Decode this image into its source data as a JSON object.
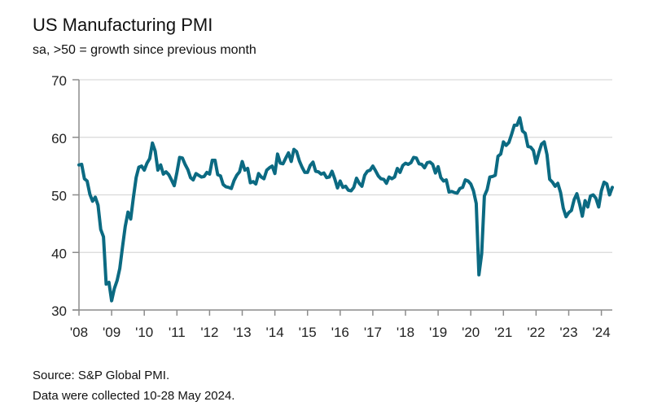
{
  "chart_data": {
    "type": "line",
    "title": "US Manufacturing PMI",
    "subtitle": "sa, >50 = growth since previous month",
    "xlabel": "",
    "ylabel": "",
    "ylim": [
      30,
      70
    ],
    "yticks": [
      30,
      40,
      50,
      60,
      70
    ],
    "xlim": [
      "2008-01",
      "2024-05"
    ],
    "xtick_labels": [
      "'08",
      "'09",
      "'10",
      "'11",
      "'12",
      "'13",
      "'14",
      "'15",
      "'16",
      "'17",
      "'18",
      "'19",
      "'20",
      "'21",
      "'22",
      "'23",
      "'24"
    ],
    "grid": "horizontal",
    "legend": "none",
    "line_color": "#0b6a82",
    "series": [
      {
        "name": "US Manufacturing PMI",
        "start": "2008-01",
        "frequency": "monthly",
        "values": [
          55.2,
          55.3,
          52.8,
          52.4,
          50.1,
          48.9,
          49.6,
          48.2,
          44.0,
          42.7,
          34.5,
          34.8,
          31.6,
          33.7,
          35.1,
          37.2,
          41.0,
          44.5,
          47.0,
          45.8,
          49.5,
          53.0,
          54.8,
          55.0,
          54.3,
          55.5,
          56.3,
          59.0,
          57.6,
          54.3,
          55.2,
          53.6,
          54.0,
          53.5,
          52.6,
          51.6,
          53.9,
          56.5,
          56.4,
          55.3,
          54.4,
          53.0,
          52.6,
          53.7,
          53.4,
          53.1,
          53.2,
          53.9,
          53.6,
          56.0,
          56.0,
          53.5,
          53.3,
          51.8,
          51.4,
          51.3,
          51.1,
          52.5,
          53.4,
          54.0,
          55.8,
          54.3,
          54.6,
          52.1,
          52.3,
          51.9,
          53.7,
          53.1,
          52.8,
          54.3,
          54.7,
          55.0,
          53.7,
          57.1,
          55.5,
          55.4,
          56.4,
          57.3,
          55.8,
          57.9,
          57.5,
          55.9,
          54.8,
          53.9,
          53.9,
          55.1,
          55.7,
          54.1,
          54.0,
          53.6,
          53.8,
          53.0,
          53.1,
          54.1,
          52.8,
          51.2,
          52.4,
          51.3,
          51.5,
          50.8,
          50.7,
          51.3,
          52.9,
          52.0,
          51.5,
          53.4,
          54.1,
          54.3,
          55.0,
          54.2,
          53.3,
          52.8,
          52.7,
          52.0,
          53.1,
          52.8,
          53.1,
          54.6,
          53.9,
          55.1,
          55.5,
          55.3,
          55.6,
          56.5,
          56.4,
          55.4,
          55.3,
          54.7,
          55.6,
          55.7,
          55.3,
          53.8,
          54.9,
          53.0,
          52.4,
          52.6,
          50.5,
          50.6,
          50.4,
          50.3,
          51.1,
          51.3,
          52.6,
          52.4,
          51.9,
          50.7,
          48.5,
          36.1,
          39.8,
          49.8,
          50.9,
          53.1,
          53.2,
          53.4,
          56.7,
          57.1,
          59.2,
          58.6,
          59.1,
          60.5,
          62.1,
          62.1,
          63.4,
          61.1,
          60.7,
          58.4,
          58.3,
          57.7,
          55.5,
          57.3,
          58.8,
          59.2,
          57.0,
          52.7,
          52.2,
          51.5,
          52.0,
          50.4,
          47.7,
          46.2,
          46.9,
          47.3,
          49.2,
          50.2,
          48.4,
          46.3,
          49.0,
          47.9,
          49.8,
          50.0,
          49.4,
          47.9,
          50.7,
          52.2,
          51.9,
          50.0,
          51.3
        ]
      }
    ]
  },
  "footer": {
    "source": "Source: S&P Global PMI.",
    "note": "Data were collected 10-28 May 2024."
  }
}
